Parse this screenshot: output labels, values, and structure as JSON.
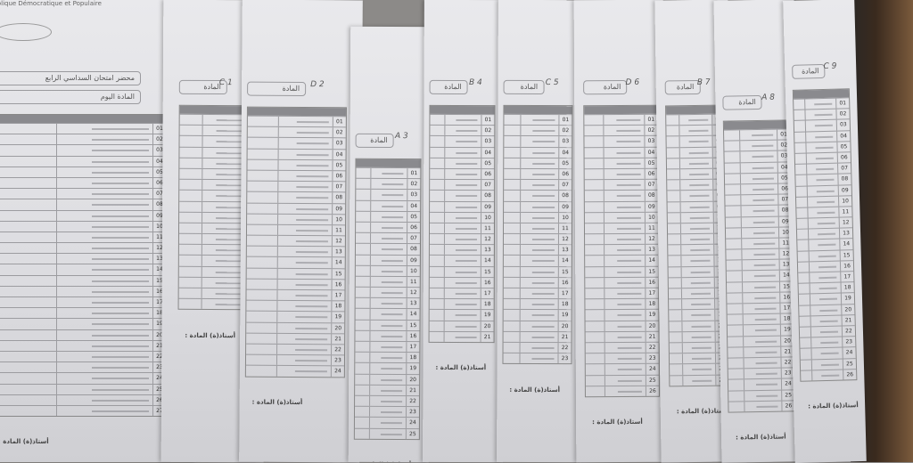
{
  "photo": {
    "header_text": "...blique Démocratique et Populaire",
    "first_sheet_title_box": "محضر امتحان السداسي الرابع",
    "subject_label": "المادة",
    "date_label": "اليوم",
    "signature_label": "أستاذ(ة) المادة :",
    "sheets": [
      {
        "rows": 27,
        "handwriting": ""
      },
      {
        "rows": 18,
        "handwriting": "C 1"
      },
      {
        "rows": 24,
        "handwriting": "D 2"
      },
      {
        "rows": 25,
        "handwriting": "A 3"
      },
      {
        "rows": 21,
        "handwriting": "B 4"
      },
      {
        "rows": 23,
        "handwriting": "C 5"
      },
      {
        "rows": 26,
        "handwriting": "D 6"
      },
      {
        "rows": 25,
        "handwriting": "B 7"
      },
      {
        "rows": 26,
        "handwriting": "A 8"
      },
      {
        "rows": 26,
        "handwriting": "C 9"
      }
    ],
    "colors": {
      "paper": "#e4e4e8",
      "background": "#8c8a88",
      "table_header": "#8a8a8e"
    }
  }
}
